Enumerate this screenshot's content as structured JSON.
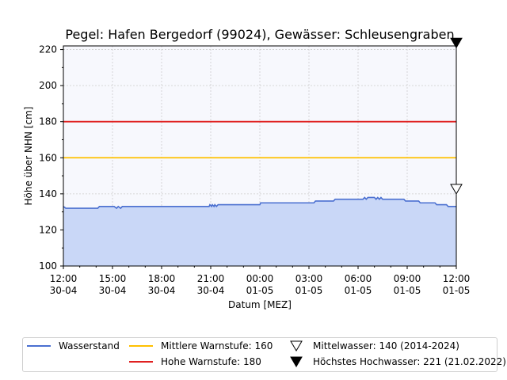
{
  "chart_data": {
    "type": "line",
    "title": "Pegel:  Hafen Bergedorf (99024), Gewässer:  Schleusengraben",
    "xlabel": "Datum [MEZ]",
    "ylabel": "Höhe über NHN [cm]",
    "ylim": [
      100,
      222
    ],
    "yticks": [
      100,
      120,
      140,
      160,
      180,
      200,
      220
    ],
    "xlim": [
      0,
      24
    ],
    "xticks": [
      {
        "x": 0,
        "time": "12:00",
        "date": "30-04"
      },
      {
        "x": 3,
        "time": "15:00",
        "date": "30-04"
      },
      {
        "x": 6,
        "time": "18:00",
        "date": "30-04"
      },
      {
        "x": 9,
        "time": "21:00",
        "date": "30-04"
      },
      {
        "x": 12,
        "time": "00:00",
        "date": "01-05"
      },
      {
        "x": 15,
        "time": "03:00",
        "date": "01-05"
      },
      {
        "x": 18,
        "time": "06:00",
        "date": "01-05"
      },
      {
        "x": 21,
        "time": "09:00",
        "date": "01-05"
      },
      {
        "x": 24,
        "time": "12:00",
        "date": "01-05"
      }
    ],
    "grid": true,
    "series": [
      {
        "name": "Wasserstand",
        "color": "#4a6fd0",
        "fill": "#c9d7f7",
        "x": [
          0,
          0.15,
          2.1,
          2.2,
          3.1,
          3.25,
          3.35,
          3.5,
          3.6,
          8.9,
          8.95,
          9.05,
          9.1,
          9.2,
          9.25,
          9.35,
          9.45,
          9.6,
          12.0,
          12.05,
          15.3,
          15.4,
          16.5,
          16.6,
          18.3,
          18.4,
          18.5,
          18.6,
          19.0,
          19.1,
          19.2,
          19.3,
          19.4,
          19.5,
          20.8,
          20.9,
          21.7,
          21.8,
          22.7,
          22.8,
          23.4,
          23.5,
          24.0
        ],
        "values": [
          133,
          132,
          132,
          133,
          133,
          132,
          133,
          132,
          133,
          133,
          134,
          133,
          134,
          133,
          134,
          133,
          134,
          134,
          134,
          135,
          135,
          136,
          136,
          137,
          137,
          138,
          137,
          138,
          138,
          137,
          138,
          137,
          138,
          137,
          137,
          136,
          136,
          135,
          135,
          134,
          134,
          133,
          133
        ]
      }
    ],
    "reference_lines": [
      {
        "name": "Mittlere Warnstufe: 160",
        "value": 160,
        "color": "#ffc000"
      },
      {
        "name": "Hohe Warnstufe: 180",
        "value": 180,
        "color": "#e02020"
      }
    ],
    "markers": [
      {
        "name": "Mittelwasser: 140 (2014-2024)",
        "value": 140,
        "x": 24,
        "symbol": "open-triangle-down"
      },
      {
        "name": "Höchstes Hochwasser: 221 (21.02.2022)",
        "value": 221,
        "x": 24,
        "symbol": "filled-triangle-down"
      }
    ],
    "legend_position": "bottom"
  },
  "legend": {
    "wasserstand": "Wasserstand",
    "mittlere": "Mittlere Warnstufe: 160",
    "hohe": "Hohe Warnstufe: 180",
    "mittelwasser": "Mittelwasser: 140 (2014-2024)",
    "hochwasser": "Höchstes Hochwasser: 221 (21.02.2022)"
  }
}
